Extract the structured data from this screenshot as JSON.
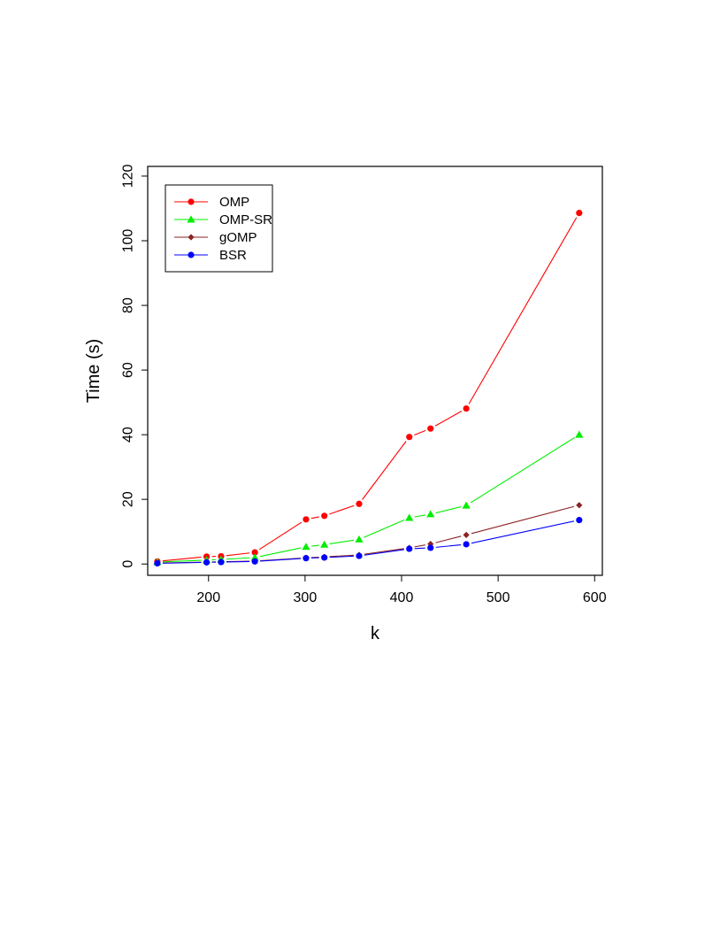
{
  "chart_data": {
    "type": "line",
    "title": "",
    "xlabel": "k",
    "ylabel": "Time (s)",
    "xlim": [
      137,
      608
    ],
    "ylim": [
      -3.5,
      123
    ],
    "xticks": [
      200,
      300,
      400,
      500,
      600
    ],
    "yticks": [
      0,
      20,
      40,
      60,
      80,
      100,
      120
    ],
    "grid": false,
    "legend_position": "top-left",
    "x": [
      147,
      198,
      213,
      248,
      301,
      320,
      356,
      408,
      430,
      467,
      584
    ],
    "series": [
      {
        "name": "OMP",
        "color": "#ff0000",
        "marker": "circle",
        "values": [
          0.8,
          2.3,
          2.4,
          3.6,
          13.8,
          14.9,
          18.6,
          39.3,
          41.9,
          48.1,
          108.6
        ]
      },
      {
        "name": "OMP-SR",
        "color": "#00ee00",
        "marker": "triangle",
        "values": [
          0.6,
          1.2,
          1.4,
          2.0,
          5.3,
          6.0,
          7.6,
          14.3,
          15.4,
          18.1,
          40.0
        ]
      },
      {
        "name": "gOMP",
        "color": "#8b2323",
        "marker": "diamond",
        "values": [
          0.3,
          0.6,
          0.7,
          0.9,
          1.9,
          2.2,
          2.8,
          5.0,
          6.2,
          9.0,
          18.2
        ]
      },
      {
        "name": "BSR",
        "color": "#0000ff",
        "marker": "circle",
        "values": [
          0.2,
          0.5,
          0.6,
          0.8,
          1.8,
          2.0,
          2.5,
          4.7,
          5.0,
          6.1,
          13.6
        ]
      }
    ]
  }
}
